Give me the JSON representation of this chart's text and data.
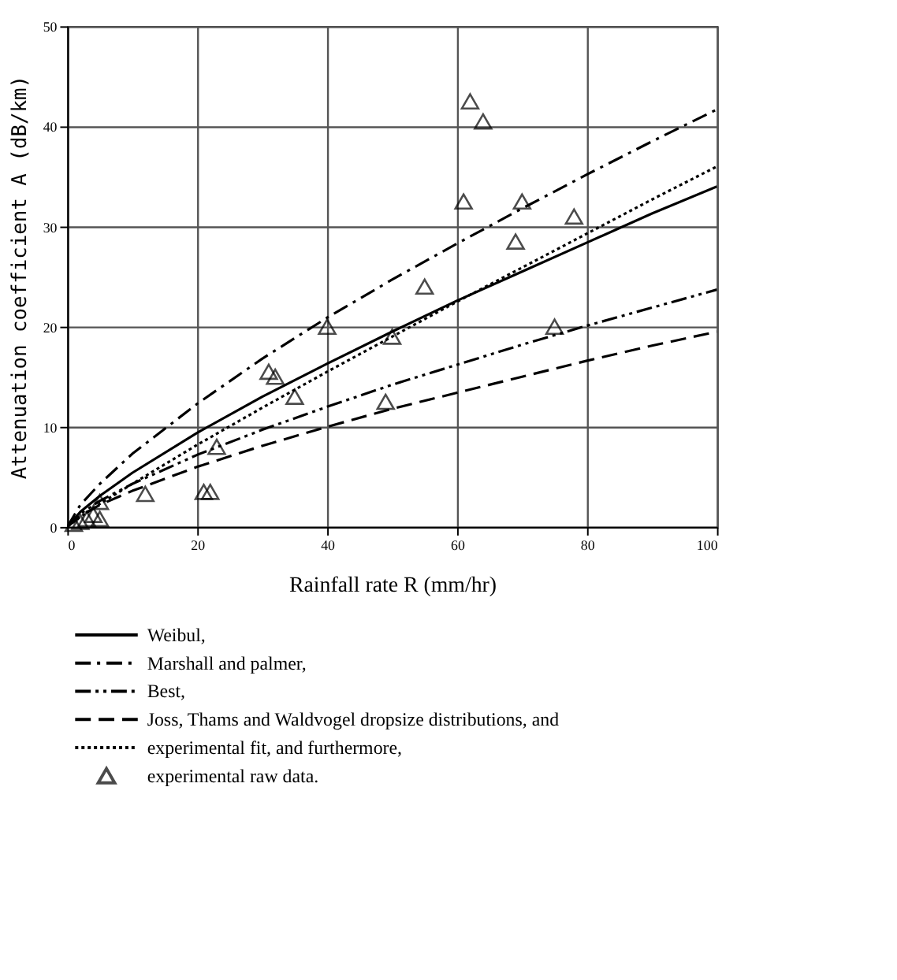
{
  "chart_data": {
    "type": "line",
    "xlabel": "Rainfall rate R (mm/hr)",
    "ylabel": "Attenuation coefficient A (dB/km)",
    "xlim": [
      0,
      100
    ],
    "xticks": [
      0,
      20,
      40,
      60,
      80,
      100
    ],
    "ylim": [
      0,
      50
    ],
    "yticks": [
      0,
      10,
      20,
      30,
      40,
      50
    ],
    "grid": true,
    "legend": "bottom",
    "x": [
      0,
      2,
      5,
      10,
      20,
      30,
      40,
      50,
      60,
      70,
      80,
      90,
      100
    ],
    "series": [
      {
        "name": "Weibul,",
        "color": "#000000",
        "line_style": "solid",
        "marker": "none",
        "values": [
          0,
          1.5,
          3.1,
          5.4,
          9.4,
          13,
          16.3,
          19.5,
          22.6,
          25.5,
          28.4,
          31.3,
          34
        ]
      },
      {
        "name": "Marshall and palmer,",
        "color": "#000000",
        "line_style": "dashdot",
        "marker": "none",
        "values": [
          0,
          2.2,
          4.3,
          7.3,
          12.3,
          16.8,
          20.9,
          24.7,
          28.3,
          31.8,
          35.2,
          38.5,
          41.7
        ]
      },
      {
        "name": "Best,",
        "color": "#000000",
        "line_style": "dashdotdot",
        "marker": "none",
        "values": [
          0,
          1.3,
          2.6,
          4.3,
          7.2,
          9.7,
          12.0,
          14.2,
          16.2,
          18.2,
          20.1,
          21.9,
          23.7
        ]
      },
      {
        "name": "Joss, Thams and Waldvogel dropsize distributions, and",
        "color": "#000000",
        "line_style": "dashed",
        "marker": "none",
        "values": [
          0,
          1.1,
          2.2,
          3.6,
          6.0,
          8.1,
          10.0,
          11.8,
          13.4,
          15.0,
          16.6,
          18.1,
          19.5
        ]
      },
      {
        "name": "experimental fit, and furthermore,",
        "color": "#000000",
        "line_style": "dotted",
        "marker": "none",
        "values": [
          0,
          1.0,
          2.3,
          4.3,
          8.2,
          11.9,
          15.5,
          19.0,
          22.5,
          25.9,
          29.3,
          32.7,
          36
        ]
      },
      {
        "name": "experimental raw data.",
        "type": "scatter",
        "color": "#000000",
        "marker": "triangle",
        "x": [
          1,
          2,
          3,
          4,
          5,
          5,
          12,
          21,
          22,
          23,
          31,
          32,
          35,
          40,
          49,
          50,
          55,
          61,
          62,
          64,
          69,
          70,
          75,
          78
        ],
        "values": [
          0.3,
          0.5,
          0.8,
          1.2,
          2.5,
          0.8,
          3.3,
          3.5,
          3.5,
          8,
          15.5,
          15,
          13,
          20,
          12.5,
          19,
          24,
          32.5,
          42.5,
          40.5,
          28.5,
          32.5,
          20,
          31
        ]
      }
    ]
  }
}
